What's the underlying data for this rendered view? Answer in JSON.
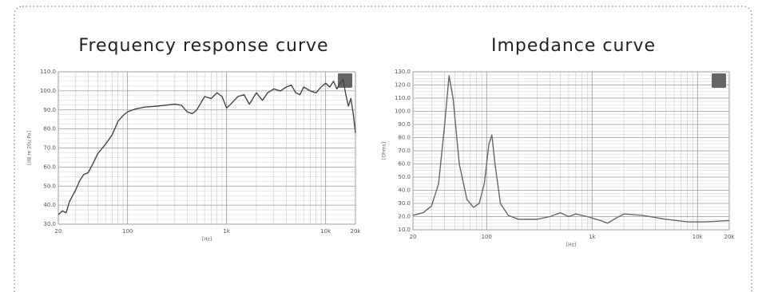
{
  "chart_data": [
    {
      "type": "line",
      "title": "Frequency response curve",
      "xlabel": "[Hz]",
      "ylabel": "[dB re 20u Pa]",
      "log_x": true,
      "grid": true,
      "minor_grid": true,
      "color": "#444444",
      "xlim": [
        20,
        20000
      ],
      "ylim": [
        30,
        110
      ],
      "xticks": [
        20,
        100,
        {
          "value": 1000,
          "label": "1k"
        },
        {
          "value": 10000,
          "label": "10k"
        },
        {
          "value": 20000,
          "label": "20k"
        }
      ],
      "yticks": [
        {
          "value": 30,
          "label": "30.0"
        },
        {
          "value": 40,
          "label": "40.0"
        },
        {
          "value": 50,
          "label": "50.0"
        },
        {
          "value": 60,
          "label": "60.0"
        },
        {
          "value": 70,
          "label": "70.0"
        },
        {
          "value": 80,
          "label": "80.0"
        },
        {
          "value": 90,
          "label": "90.0"
        },
        {
          "value": 100,
          "label": "100.0"
        },
        {
          "value": 110,
          "label": "110.0"
        }
      ],
      "x": [
        20,
        22,
        24,
        26,
        30,
        33,
        36,
        40,
        45,
        50,
        60,
        70,
        80,
        90,
        100,
        120,
        150,
        200,
        300,
        350,
        400,
        450,
        500,
        600,
        700,
        800,
        900,
        1000,
        1100,
        1300,
        1500,
        1700,
        2000,
        2300,
        2600,
        3000,
        3500,
        4000,
        4500,
        5000,
        5500,
        6000,
        7000,
        8000,
        9000,
        10000,
        11000,
        12000,
        13000,
        14000,
        15000,
        16000,
        17000,
        18000,
        19000,
        20000
      ],
      "values": [
        35,
        37,
        36,
        42,
        48,
        53,
        56,
        57,
        62,
        67,
        72,
        77,
        84,
        87,
        89,
        90.5,
        91.5,
        92,
        93,
        92.5,
        89,
        88,
        90,
        97,
        96,
        99,
        97,
        91,
        93,
        97,
        98,
        93,
        99,
        95,
        99,
        101,
        100,
        102,
        103,
        99,
        98,
        102,
        100,
        99,
        102,
        104,
        102,
        105,
        101,
        104,
        106,
        98,
        92,
        96,
        88,
        78
      ]
    },
    {
      "type": "line",
      "title": "Impedance curve",
      "xlabel": "[Hz]",
      "ylabel": "[Ohms]",
      "log_x": true,
      "grid": true,
      "minor_grid": true,
      "color": "#666666",
      "xlim": [
        20,
        20000
      ],
      "ylim": [
        10,
        130
      ],
      "xticks": [
        20,
        100,
        {
          "value": 1000,
          "label": "1k"
        },
        {
          "value": 10000,
          "label": "10k"
        },
        {
          "value": 20000,
          "label": "20k"
        }
      ],
      "yticks": [
        {
          "value": 10,
          "label": "10.0"
        },
        {
          "value": 20,
          "label": "20.0"
        },
        {
          "value": 30,
          "label": "30.0"
        },
        {
          "value": 40,
          "label": "40.0"
        },
        {
          "value": 50,
          "label": "50.0"
        },
        {
          "value": 60,
          "label": "60.0"
        },
        {
          "value": 70,
          "label": "70.0"
        },
        {
          "value": 80,
          "label": "80.0"
        },
        {
          "value": 90,
          "label": "90.0"
        },
        {
          "value": 100,
          "label": "100.0"
        },
        {
          "value": 110,
          "label": "110.0"
        },
        {
          "value": 120,
          "label": "120.0"
        },
        {
          "value": 130,
          "label": "130.0"
        }
      ],
      "x": [
        20,
        25,
        30,
        35,
        40,
        44,
        48,
        55,
        65,
        75,
        85,
        95,
        105,
        112,
        120,
        135,
        160,
        200,
        300,
        400,
        500,
        600,
        700,
        900,
        1200,
        1400,
        1700,
        2000,
        3000,
        5000,
        8000,
        12000,
        20000
      ],
      "values": [
        21,
        23,
        28,
        45,
        90,
        127,
        110,
        60,
        33,
        27,
        30,
        45,
        75,
        82,
        60,
        30,
        21,
        18,
        18,
        20,
        23,
        20,
        22,
        20,
        17,
        15,
        19,
        22,
        21,
        18,
        16,
        16,
        17
      ]
    }
  ]
}
